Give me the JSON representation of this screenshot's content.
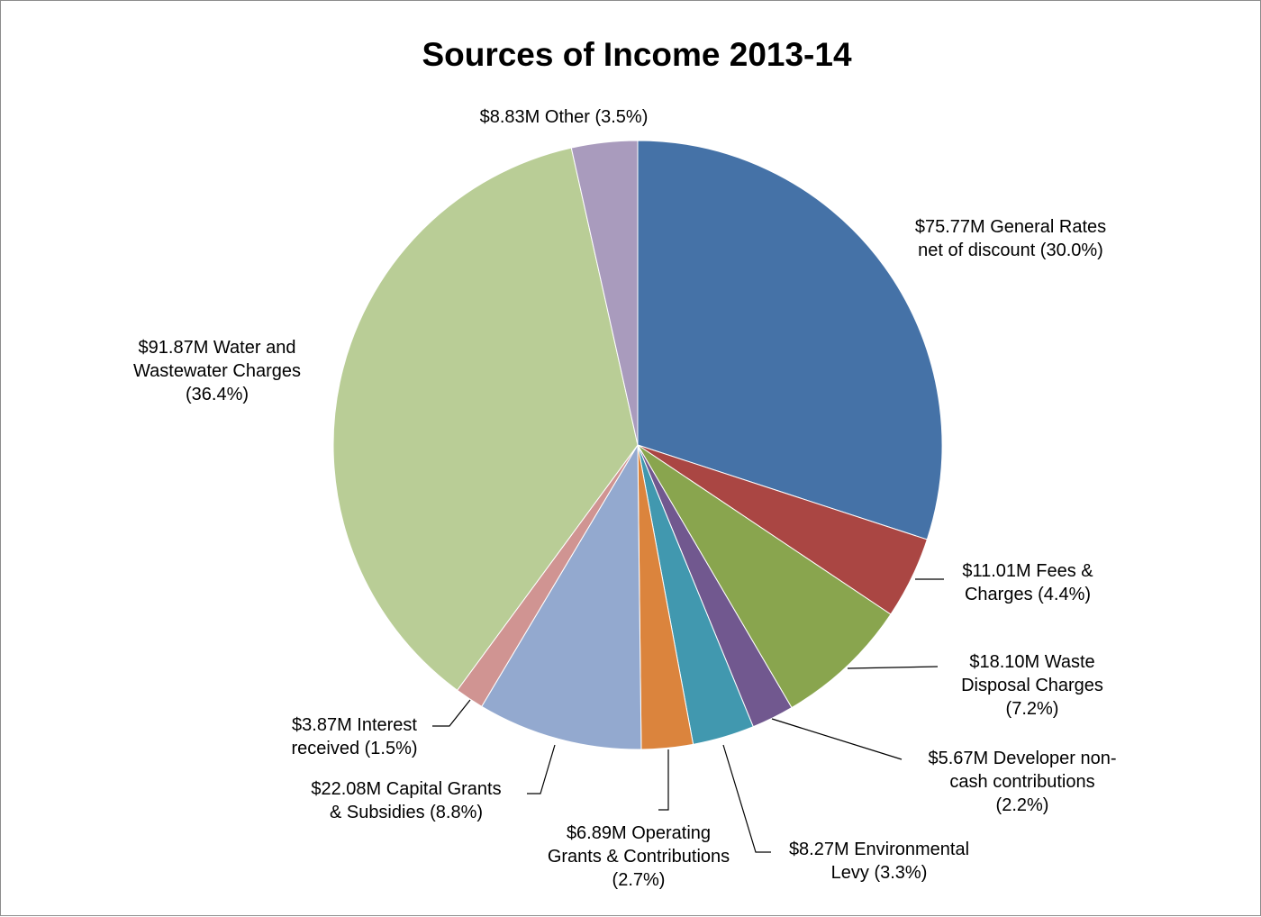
{
  "chart_data": {
    "type": "pie",
    "title": "Sources of Income 2013-14",
    "slices": [
      {
        "label_lines": [
          "$75.77M General Rates",
          "net of discount (30.0%)"
        ],
        "value": 75.77,
        "percent": 30.0,
        "color": "#4572A7"
      },
      {
        "label_lines": [
          "$11.01M Fees &",
          "Charges (4.4%)"
        ],
        "value": 11.01,
        "percent": 4.4,
        "color": "#AA4643"
      },
      {
        "label_lines": [
          "$18.10M Waste",
          "Disposal Charges",
          "(7.2%)"
        ],
        "value": 18.1,
        "percent": 7.2,
        "color": "#89A54E"
      },
      {
        "label_lines": [
          "$5.67M Developer non-",
          "cash contributions",
          "(2.2%)"
        ],
        "value": 5.67,
        "percent": 2.2,
        "color": "#71588F"
      },
      {
        "label_lines": [
          "$8.27M Environmental",
          "Levy (3.3%)"
        ],
        "value": 8.27,
        "percent": 3.3,
        "color": "#4198AF"
      },
      {
        "label_lines": [
          "$6.89M Operating",
          "Grants & Contributions",
          "(2.7%)"
        ],
        "value": 6.89,
        "percent": 2.7,
        "color": "#DB843D"
      },
      {
        "label_lines": [
          "$22.08M Capital Grants",
          "& Subsidies (8.8%)"
        ],
        "value": 22.08,
        "percent": 8.8,
        "color": "#93A9CF"
      },
      {
        "label_lines": [
          "$3.87M Interest",
          "received (1.5%)"
        ],
        "value": 3.87,
        "percent": 1.5,
        "color": "#D09492"
      },
      {
        "label_lines": [
          "$91.87M Water and",
          "Wastewater Charges",
          "(36.4%)"
        ],
        "value": 91.87,
        "percent": 36.4,
        "color": "#B9CD96"
      },
      {
        "label_lines": [
          "$8.83M Other (3.5%)"
        ],
        "value": 8.83,
        "percent": 3.5,
        "color": "#A99BBD"
      }
    ],
    "legend": "none",
    "start_angle": "12 o'clock",
    "direction": "clockwise"
  }
}
